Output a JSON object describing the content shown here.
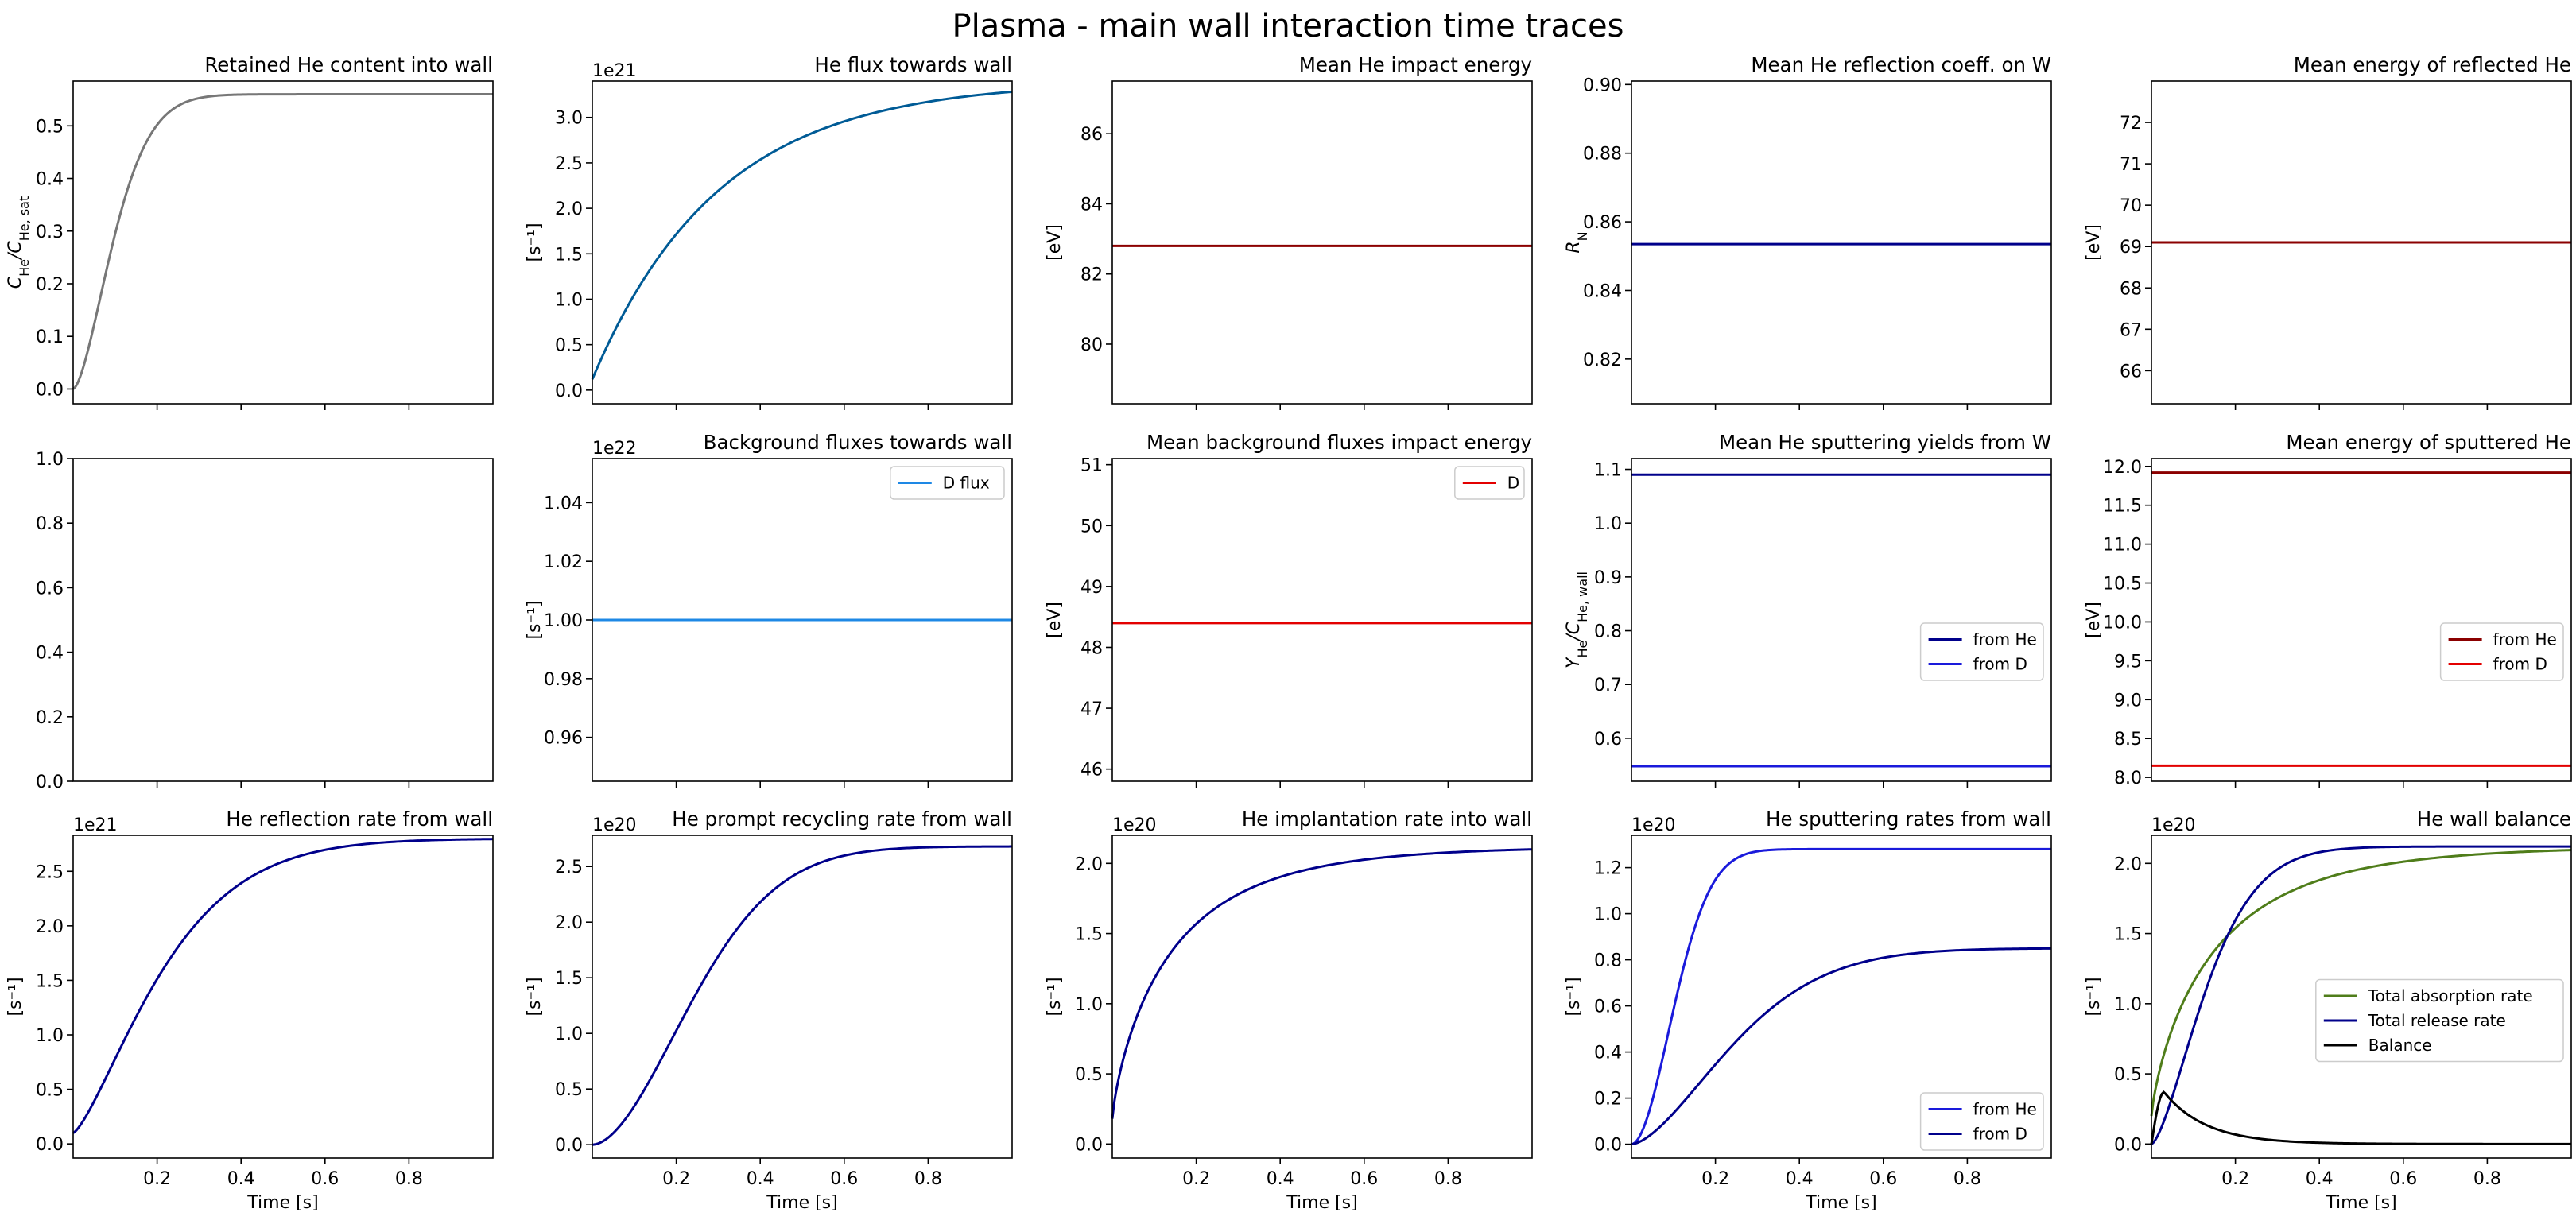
{
  "suptitle": "Plasma - main wall interaction time traces",
  "chart_data": [
    {
      "id": "r0c0",
      "type": "line",
      "title": "Retained He content into wall",
      "ylabel": "C_He/C_He,sat",
      "xlabel": "",
      "xlim": [
        0.0,
        1.0
      ],
      "ylim": [
        -0.028,
        0.585
      ],
      "yticks": [
        0.0,
        0.1,
        0.2,
        0.3,
        0.4,
        0.5
      ],
      "xticks": [
        0.2,
        0.4,
        0.6,
        0.8
      ],
      "xticklabels": false,
      "series": [
        {
          "color": "#777777",
          "kind": "sigmoid",
          "amp": 0.56,
          "tau": 0.12,
          "n": 1.6
        }
      ]
    },
    {
      "id": "r0c1",
      "type": "line",
      "title": "He flux towards wall",
      "ylabel": "[s⁻¹]",
      "xlabel": "",
      "offset": "1e21",
      "xlim": [
        0.0,
        1.0
      ],
      "ylim": [
        -0.15,
        3.4
      ],
      "yticks": [
        0.0,
        0.5,
        1.0,
        1.5,
        2.0,
        2.5,
        3.0
      ],
      "xticks": [
        0.2,
        0.4,
        0.6,
        0.8
      ],
      "xticklabels": false,
      "series": [
        {
          "color": "#005b96",
          "kind": "sat",
          "start": 0.12,
          "end": 3.4,
          "tau": 0.3
        }
      ]
    },
    {
      "id": "r0c2",
      "type": "line",
      "title": "Mean He impact energy",
      "ylabel": "[eV]",
      "xlabel": "",
      "xlim": [
        0.0,
        1.0
      ],
      "ylim": [
        78.3,
        87.5
      ],
      "yticks": [
        80,
        82,
        84,
        86
      ],
      "xticks": [
        0.2,
        0.4,
        0.6,
        0.8
      ],
      "xticklabels": false,
      "series": [
        {
          "color": "#8b0000",
          "kind": "const",
          "value": 82.8
        }
      ]
    },
    {
      "id": "r0c3",
      "type": "line",
      "title": "Mean He reflection coeff. on W",
      "ylabel": "R_N",
      "xlabel": "",
      "xlim": [
        0.0,
        1.0
      ],
      "ylim": [
        0.807,
        0.901
      ],
      "yticks": [
        0.82,
        0.84,
        0.86,
        0.88,
        0.9
      ],
      "xticks": [
        0.2,
        0.4,
        0.6,
        0.8
      ],
      "xticklabels": false,
      "series": [
        {
          "color": "#00008b",
          "kind": "const",
          "value": 0.8535
        }
      ]
    },
    {
      "id": "r0c4",
      "type": "line",
      "title": "Mean energy of reflected He",
      "ylabel": "[eV]",
      "xlabel": "",
      "xlim": [
        0.0,
        1.0
      ],
      "ylim": [
        65.2,
        73.0
      ],
      "yticks": [
        66,
        67,
        68,
        69,
        70,
        71,
        72
      ],
      "xticks": [
        0.2,
        0.4,
        0.6,
        0.8
      ],
      "xticklabels": false,
      "series": [
        {
          "color": "#8b0000",
          "kind": "const",
          "value": 69.1
        }
      ]
    },
    {
      "id": "r1c0",
      "type": "line",
      "title": "",
      "ylabel": "",
      "xlabel": "",
      "xlim": [
        0.0,
        1.0
      ],
      "ylim": [
        0.0,
        1.0
      ],
      "yticks": [
        0.0,
        0.2,
        0.4,
        0.6,
        0.8,
        1.0
      ],
      "xticks": [
        0.2,
        0.4,
        0.6,
        0.8
      ],
      "xticklabels": false,
      "series": []
    },
    {
      "id": "r1c1",
      "type": "line",
      "title": "Background fluxes towards wall",
      "ylabel": "[s⁻¹]",
      "xlabel": "",
      "offset": "1e22",
      "xlim": [
        0.0,
        1.0
      ],
      "ylim": [
        0.945,
        1.055
      ],
      "yticks": [
        0.96,
        0.98,
        1.0,
        1.02,
        1.04
      ],
      "xticks": [
        0.2,
        0.4,
        0.6,
        0.8
      ],
      "xticklabels": false,
      "legend": "top-right",
      "series": [
        {
          "name": "D flux",
          "color": "#1e88e5",
          "kind": "const",
          "value": 1.0
        }
      ]
    },
    {
      "id": "r1c2",
      "type": "line",
      "title": "Mean background fluxes impact energy",
      "ylabel": "[eV]",
      "xlabel": "",
      "xlim": [
        0.0,
        1.0
      ],
      "ylim": [
        45.8,
        51.1
      ],
      "yticks": [
        46,
        47,
        48,
        49,
        50,
        51
      ],
      "xticks": [
        0.2,
        0.4,
        0.6,
        0.8
      ],
      "xticklabels": false,
      "legend": "top-right",
      "series": [
        {
          "name": "D",
          "color": "#e30000",
          "kind": "const",
          "value": 48.4
        }
      ]
    },
    {
      "id": "r1c3",
      "type": "line",
      "title": "Mean He sputtering yields from W",
      "ylabel": "Y_He/C_He,wall",
      "xlabel": "",
      "xlim": [
        0.0,
        1.0
      ],
      "ylim": [
        0.52,
        1.12
      ],
      "yticks": [
        0.6,
        0.7,
        0.8,
        0.9,
        1.0,
        1.1
      ],
      "xticks": [
        0.2,
        0.4,
        0.6,
        0.8
      ],
      "xticklabels": false,
      "legend": "center-right",
      "series": [
        {
          "name": "from He",
          "color": "#00008b",
          "kind": "const",
          "value": 1.09
        },
        {
          "name": "from D",
          "color": "#1a1adb",
          "kind": "const",
          "value": 0.548
        }
      ]
    },
    {
      "id": "r1c4",
      "type": "line",
      "title": "Mean energy of sputtered He",
      "ylabel": "[eV]",
      "xlabel": "",
      "xlim": [
        0.0,
        1.0
      ],
      "ylim": [
        7.95,
        12.1
      ],
      "yticks": [
        8.0,
        8.5,
        9.0,
        9.5,
        10.0,
        10.5,
        11.0,
        11.5,
        12.0
      ],
      "xticks": [
        0.2,
        0.4,
        0.6,
        0.8
      ],
      "xticklabels": false,
      "legend": "center-right",
      "series": [
        {
          "name": "from He",
          "color": "#8b0000",
          "kind": "const",
          "value": 11.92
        },
        {
          "name": "from D",
          "color": "#e30000",
          "kind": "const",
          "value": 8.15
        }
      ]
    },
    {
      "id": "r2c0",
      "type": "line",
      "title": "He reflection rate from wall",
      "ylabel": "[s⁻¹]",
      "xlabel": "Time [s]",
      "offset": "1e21",
      "xlim": [
        0.0,
        1.0
      ],
      "ylim": [
        -0.13,
        2.83
      ],
      "yticks": [
        0.0,
        0.5,
        1.0,
        1.5,
        2.0,
        2.5
      ],
      "xticks": [
        0.2,
        0.4,
        0.6,
        0.8
      ],
      "xticklabels": true,
      "series": [
        {
          "color": "#00008b",
          "kind": "sat",
          "start": 0.1,
          "end": 2.8,
          "tau": 0.25,
          "n": 1.35
        }
      ]
    },
    {
      "id": "r2c1",
      "type": "line",
      "title": "He prompt recycling rate from wall",
      "ylabel": "[s⁻¹]",
      "xlabel": "Time [s]",
      "offset": "1e20",
      "xlim": [
        0.0,
        1.0
      ],
      "ylim": [
        -0.12,
        2.78
      ],
      "yticks": [
        0.0,
        0.5,
        1.0,
        1.5,
        2.0,
        2.5
      ],
      "xticks": [
        0.2,
        0.4,
        0.6,
        0.8
      ],
      "xticklabels": true,
      "series": [
        {
          "color": "#00008b",
          "kind": "sigmoid",
          "amp": 2.68,
          "tau": 0.3,
          "n": 1.8
        }
      ]
    },
    {
      "id": "r2c2",
      "type": "line",
      "title": "He implantation rate into wall",
      "ylabel": "[s⁻¹]",
      "xlabel": "Time [s]",
      "offset": "1e20",
      "xlim": [
        0.0,
        1.0
      ],
      "ylim": [
        -0.1,
        2.2
      ],
      "yticks": [
        0.0,
        0.5,
        1.0,
        1.5,
        2.0
      ],
      "xticks": [
        0.2,
        0.4,
        0.6,
        0.8
      ],
      "xticklabels": true,
      "series": [
        {
          "color": "#00008b",
          "kind": "sat",
          "start": 0.18,
          "end": 2.12,
          "tau": 0.15,
          "n": 0.8
        }
      ]
    },
    {
      "id": "r2c3",
      "type": "line",
      "title": "He sputtering rates from wall",
      "ylabel": "[s⁻¹]",
      "xlabel": "Time [s]",
      "offset": "1e20",
      "xlim": [
        0.0,
        1.0
      ],
      "ylim": [
        -0.06,
        1.34
      ],
      "yticks": [
        0.0,
        0.2,
        0.4,
        0.6,
        0.8,
        1.0,
        1.2
      ],
      "xticks": [
        0.2,
        0.4,
        0.6,
        0.8
      ],
      "xticklabels": true,
      "legend": "bottom-right",
      "series": [
        {
          "name": "from He",
          "color": "#1a1adb",
          "kind": "sigmoid",
          "amp": 1.28,
          "tau": 0.13,
          "n": 1.9
        },
        {
          "name": "from D",
          "color": "#00008b",
          "kind": "sigmoid",
          "amp": 0.85,
          "tau": 0.3,
          "n": 1.6
        }
      ]
    },
    {
      "id": "r2c4",
      "type": "line",
      "title": "He wall balance",
      "ylabel": "[s⁻¹]",
      "xlabel": "Time [s]",
      "offset": "1e20",
      "xlim": [
        0.0,
        1.0
      ],
      "ylim": [
        -0.1,
        2.2
      ],
      "yticks": [
        0.0,
        0.5,
        1.0,
        1.5,
        2.0
      ],
      "xticks": [
        0.2,
        0.4,
        0.6,
        0.8
      ],
      "xticklabels": true,
      "legend": "center-right",
      "series": [
        {
          "name": "Total absorption rate",
          "color": "#4f7d1a",
          "kind": "sat",
          "start": 0.2,
          "end": 2.12,
          "tau": 0.16,
          "n": 0.8
        },
        {
          "name": "Total release rate",
          "color": "#00008b",
          "kind": "sigmoid",
          "amp": 2.12,
          "tau": 0.16,
          "n": 1.5
        },
        {
          "name": "Balance",
          "color": "#000000",
          "kind": "pulse",
          "amp": 0.37,
          "peak": 0.03,
          "decay": 0.1
        }
      ]
    }
  ]
}
